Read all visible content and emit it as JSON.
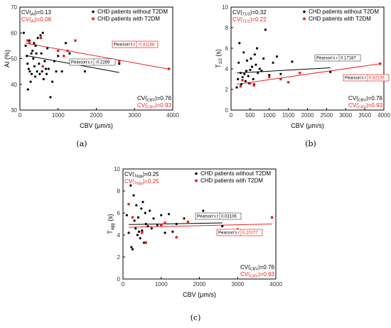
{
  "chart_data": [
    {
      "panel": "(a)",
      "type": "scatter",
      "xlabel": "CBV",
      "xunit": "(μm/s)",
      "ylabel": "AI",
      "yunit": "(%)",
      "xlim": [
        0,
        4000
      ],
      "ylim": [
        30,
        70
      ],
      "xticks": [
        0,
        1000,
        2000,
        3000,
        4000
      ],
      "yticks": [
        30,
        40,
        50,
        60,
        70
      ],
      "cv_top": [
        {
          "text": "CV(",
          "sub": "AI",
          "text2": ")=0.13",
          "color": "#000000"
        },
        {
          "text": "CV(",
          "sub": "AI",
          "text2": ")=0.08",
          "color": "#e8231f"
        }
      ],
      "cv_bottom": [
        {
          "text": "CV(",
          "sub": "CBV",
          "text2": ")=0.76",
          "color": "#000000"
        },
        {
          "text": "CV(",
          "sub": "CBV",
          "text2": ")=0.93",
          "color": "#e8231f"
        }
      ],
      "series": [
        {
          "name": "CHD patients without T2DM",
          "color": "#000000",
          "marker": "circle",
          "points": [
            [
              100,
              60
            ],
            [
              150,
              55
            ],
            [
              180,
              51
            ],
            [
              200,
              48
            ],
            [
              210,
              38
            ],
            [
              230,
              46
            ],
            [
              250,
              57
            ],
            [
              260,
              45
            ],
            [
              280,
              41
            ],
            [
              300,
              52
            ],
            [
              310,
              44
            ],
            [
              330,
              53
            ],
            [
              350,
              50
            ],
            [
              370,
              56
            ],
            [
              380,
              47
            ],
            [
              400,
              43
            ],
            [
              410,
              55
            ],
            [
              430,
              52
            ],
            [
              450,
              45
            ],
            [
              470,
              58
            ],
            [
              500,
              48
            ],
            [
              520,
              44
            ],
            [
              540,
              59
            ],
            [
              560,
              52
            ],
            [
              580,
              45
            ],
            [
              600,
              60
            ],
            [
              620,
              42
            ],
            [
              650,
              49
            ],
            [
              680,
              46
            ],
            [
              700,
              44
            ],
            [
              720,
              54
            ],
            [
              750,
              46
            ],
            [
              800,
              35
            ],
            [
              850,
              41
            ],
            [
              900,
              49
            ],
            [
              950,
              45
            ],
            [
              1000,
              51
            ],
            [
              1100,
              45
            ],
            [
              1200,
              56
            ],
            [
              1300,
              52
            ],
            [
              1400,
              48
            ],
            [
              1700,
              45
            ],
            [
              2600,
              48
            ]
          ],
          "fit": {
            "x": [
              150,
              2600
            ],
            "y": [
              51.2,
              44.6
            ]
          },
          "pearson_label": "Pearson's r",
          "pearson_value": "-0.2269"
        },
        {
          "name": "CHD patients with T2DM",
          "color": "#e8231f",
          "marker": "square",
          "points": [
            [
              200,
              57
            ],
            [
              250,
              56
            ],
            [
              550,
              58
            ],
            [
              600,
              47
            ],
            [
              1000,
              53
            ],
            [
              1150,
              51
            ],
            [
              1250,
              53
            ],
            [
              1450,
              57
            ],
            [
              1700,
              49
            ],
            [
              2600,
              49
            ],
            [
              3900,
              46
            ]
          ],
          "fit": {
            "x": [
              150,
              3900
            ],
            "y": [
              56.0,
              45.9
            ]
          },
          "pearson_label": "Pearson's r",
          "pearson_value": "-0.81188"
        }
      ]
    },
    {
      "panel": "(b)",
      "type": "scatter",
      "xlabel": "CBV",
      "xunit": "(μm/s)",
      "ylabel": "T",
      "ysub": "1/2",
      "yunit": "(s)",
      "xlim": [
        0,
        4000
      ],
      "ylim": [
        0,
        10
      ],
      "xticks": [
        0,
        500,
        1000,
        1500,
        2000,
        2500,
        3000,
        3500,
        4000
      ],
      "yticks": [
        0,
        2,
        4,
        6,
        8,
        10
      ],
      "cv_top": [
        {
          "text": "CV(",
          "sub": "T1/2",
          "text2": ")=0.32",
          "color": "#000000"
        },
        {
          "text": "CV(",
          "sub": "T1/2",
          "text2": ")=0.22",
          "color": "#e8231f"
        }
      ],
      "cv_bottom": [
        {
          "text": "CV(",
          "sub": "CBV",
          "text2": ")=0.76",
          "color": "#000000"
        },
        {
          "text": "CV(",
          "sub": "CBV",
          "text2": ")=0.93",
          "color": "#e8231f"
        }
      ],
      "series": [
        {
          "name": "CHD patients without T2DM",
          "color": "#000000",
          "marker": "circle",
          "points": [
            [
              150,
              2.2
            ],
            [
              180,
              3.0
            ],
            [
              200,
              4.6
            ],
            [
              220,
              6.5
            ],
            [
              250,
              3.6
            ],
            [
              270,
              2.5
            ],
            [
              300,
              3.2
            ],
            [
              330,
              5.6
            ],
            [
              350,
              3.5
            ],
            [
              380,
              2.8
            ],
            [
              400,
              3.8
            ],
            [
              420,
              4.8
            ],
            [
              450,
              3.3
            ],
            [
              470,
              2.6
            ],
            [
              500,
              3.9
            ],
            [
              520,
              5.0
            ],
            [
              550,
              4.2
            ],
            [
              580,
              3.0
            ],
            [
              600,
              2.5
            ],
            [
              620,
              5.4
            ],
            [
              650,
              4.4
            ],
            [
              680,
              6.0
            ],
            [
              700,
              3.6
            ],
            [
              750,
              4.0
            ],
            [
              800,
              3.8
            ],
            [
              850,
              5.0
            ],
            [
              900,
              7.8
            ],
            [
              1000,
              3.4
            ],
            [
              1100,
              4.6
            ],
            [
              1200,
              5.2
            ],
            [
              1300,
              3.5
            ],
            [
              1600,
              4.7
            ],
            [
              2600,
              3.7
            ]
          ],
          "fit": {
            "x": [
              150,
              2600
            ],
            "y": [
              3.6,
              4.1
            ]
          },
          "pearson_label": "Pearson's r",
          "pearson_value": "0.17187"
        },
        {
          "name": "CHD patients with T2DM",
          "color": "#e8231f",
          "marker": "square",
          "points": [
            [
              250,
              2.3
            ],
            [
              300,
              2.9
            ],
            [
              500,
              2.6
            ],
            [
              600,
              2.4
            ],
            [
              1000,
              3.2
            ],
            [
              1300,
              3.0
            ],
            [
              1500,
              2.7
            ],
            [
              1800,
              3.6
            ],
            [
              3900,
              4.5
            ]
          ],
          "fit": {
            "x": [
              150,
              3900
            ],
            "y": [
              2.5,
              4.5
            ]
          },
          "pearson_label": "Pearson's r",
          "pearson_value": "0.82135"
        }
      ]
    },
    {
      "panel": "(c)",
      "type": "scatter",
      "xlabel": "CBV",
      "xunit": "(μm/s)",
      "ylabel": "T",
      "ysub": "agg",
      "yunit": "(s)",
      "xlim": [
        0,
        4000
      ],
      "ylim": [
        0,
        10
      ],
      "xticks": [
        0,
        1000,
        2000,
        3000,
        4000
      ],
      "yticks": [
        0,
        2,
        4,
        6,
        8,
        10
      ],
      "cv_top": [
        {
          "text": "CV(",
          "sub": "Tagg",
          "text2": ")=0.25",
          "color": "#000000"
        },
        {
          "text": "CV(",
          "sub": "Tagg",
          "text2": ")=0.25",
          "color": "#e8231f"
        }
      ],
      "cv_bottom": [
        {
          "text": "CV(",
          "sub": "CBV",
          "text2": ")=0.76",
          "color": "#000000"
        },
        {
          "text": "CV(",
          "sub": "CBV",
          "text2": ")=0.93",
          "color": "#e8231f"
        }
      ],
      "series": [
        {
          "name": "CHD patients without T2DM",
          "color": "#000000",
          "marker": "circle",
          "points": [
            [
              100,
              5.8
            ],
            [
              150,
              4.2
            ],
            [
              200,
              8.5
            ],
            [
              220,
              2.9
            ],
            [
              250,
              2.7
            ],
            [
              280,
              7.6
            ],
            [
              300,
              5.3
            ],
            [
              330,
              4.6
            ],
            [
              350,
              6.7
            ],
            [
              380,
              4.0
            ],
            [
              400,
              5.6
            ],
            [
              420,
              4.3
            ],
            [
              450,
              3.7
            ],
            [
              480,
              6.4
            ],
            [
              500,
              4.4
            ],
            [
              520,
              7.0
            ],
            [
              550,
              3.3
            ],
            [
              580,
              6.0
            ],
            [
              600,
              5.0
            ],
            [
              650,
              4.8
            ],
            [
              700,
              6.2
            ],
            [
              750,
              4.6
            ],
            [
              800,
              5.5
            ],
            [
              900,
              4.9
            ],
            [
              1000,
              5.8
            ],
            [
              1100,
              4.2
            ],
            [
              1200,
              5.9
            ],
            [
              1300,
              4.3
            ],
            [
              1400,
              5.0
            ],
            [
              1600,
              5.5
            ],
            [
              2100,
              6.2
            ],
            [
              2600,
              4.8
            ]
          ],
          "fit": {
            "x": [
              150,
              2600
            ],
            "y": [
              4.95,
              5.1
            ]
          },
          "pearson_label": "Pearson's r",
          "pearson_value": "0.03106"
        },
        {
          "name": "CHD patients with T2DM",
          "color": "#e8231f",
          "marker": "square",
          "points": [
            [
              150,
              6.8
            ],
            [
              250,
              5.6
            ],
            [
              500,
              4.2
            ],
            [
              600,
              3.3
            ],
            [
              1000,
              4.9
            ],
            [
              1100,
              5.1
            ],
            [
              1400,
              3.8
            ],
            [
              1700,
              5.2
            ],
            [
              3000,
              4.5
            ],
            [
              3900,
              5.6
            ]
          ],
          "fit": {
            "x": [
              150,
              3900
            ],
            "y": [
              4.7,
              5.0
            ]
          },
          "pearson_label": "Pearson's r",
          "pearson_value": "0.10277"
        }
      ]
    }
  ]
}
